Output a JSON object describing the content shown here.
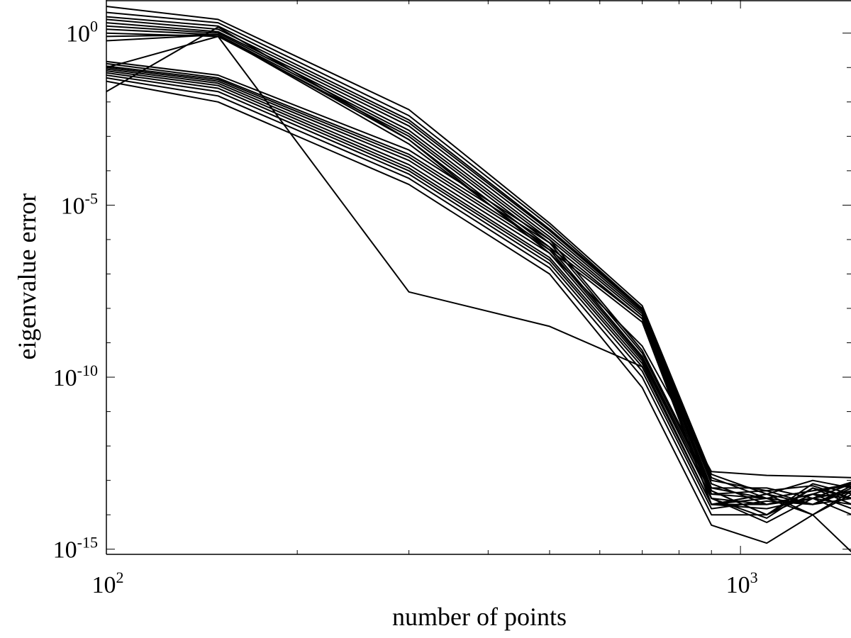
{
  "chart_data": {
    "type": "line",
    "title": "",
    "xlabel": "number of points",
    "ylabel": "eigenvalue error",
    "x_scale": "log",
    "y_scale": "log",
    "xlim": [
      100,
      1500
    ],
    "ylim": [
      5e-16,
      10.0
    ],
    "grid": false,
    "legend": "none",
    "line_color": "#000000",
    "x_ticks": [
      {
        "value": 100,
        "base": "10",
        "exp": "2"
      },
      {
        "value": 1000,
        "base": "10",
        "exp": "3"
      }
    ],
    "y_ticks": [
      {
        "value": 1,
        "base": "10",
        "exp": "0"
      },
      {
        "value": 1e-05,
        "base": "10",
        "exp": "-5"
      },
      {
        "value": 1e-10,
        "base": "10",
        "exp": "-10"
      },
      {
        "value": 1e-15,
        "base": "10",
        "exp": "-15"
      }
    ],
    "x": [
      100,
      150,
      300,
      500,
      700,
      900,
      1100,
      1300,
      1500
    ],
    "note_series": "approximately 50 overlapping eigenvalue-error curves; representative values read from the plot",
    "series": [
      {
        "values": [
          6.0,
          2.5,
          0.006,
          3e-06,
          1.2e-08,
          1.5e-13,
          4e-14,
          1e-13,
          6e-14
        ]
      },
      {
        "values": [
          4.0,
          2.0,
          0.004,
          2.5e-06,
          1e-08,
          1.2e-13,
          3e-14,
          5e-14,
          8e-14
        ]
      },
      {
        "values": [
          3.0,
          1.6,
          0.003,
          2e-06,
          1e-08,
          1e-13,
          5e-14,
          7e-14,
          3e-14
        ]
      },
      {
        "values": [
          2.5,
          1.3,
          0.0025,
          1.8e-06,
          9e-09,
          8e-14,
          2e-14,
          4e-14,
          9e-14
        ]
      },
      {
        "values": [
          2.0,
          1.1,
          0.002,
          1.5e-06,
          8e-09,
          6e-14,
          6e-14,
          3e-14,
          5e-14
        ]
      },
      {
        "values": [
          1.6,
          1.0,
          0.0015,
          1.2e-06,
          7e-09,
          5e-14,
          1e-14,
          8e-14,
          4e-14
        ]
      },
      {
        "values": [
          1.3,
          0.9,
          0.0012,
          1e-06,
          6e-09,
          4e-14,
          3e-14,
          2e-14,
          7e-14
        ]
      },
      {
        "values": [
          1.0,
          0.8,
          0.001,
          8e-07,
          5e-09,
          3e-14,
          8e-15,
          6e-14,
          2e-14
        ]
      },
      {
        "values": [
          0.8,
          0.9,
          0.0008,
          6e-07,
          5e-09,
          2e-14,
          4e-14,
          1e-14,
          5e-14
        ]
      },
      {
        "values": [
          0.6,
          0.9,
          0.0006,
          5e-07,
          4e-09,
          2e-14,
          2e-14,
          3e-14,
          1e-14
        ]
      },
      {
        "values": [
          0.15,
          0.06,
          0.0004,
          1e-06,
          6e-10,
          6e-14,
          3e-14,
          5e-14,
          7e-14
        ]
      },
      {
        "values": [
          0.13,
          0.05,
          0.0003,
          8e-07,
          5e-10,
          5e-14,
          1e-14,
          6e-14,
          3e-14
        ]
      },
      {
        "values": [
          0.11,
          0.045,
          0.00025,
          6e-07,
          4e-10,
          4e-14,
          5e-14,
          2e-14,
          6e-14
        ]
      },
      {
        "values": [
          0.1,
          0.04,
          0.0002,
          5e-07,
          3.5e-10,
          3e-14,
          2e-14,
          4e-14,
          3e-14
        ]
      },
      {
        "values": [
          0.09,
          0.035,
          0.00015,
          4e-07,
          3e-10,
          3e-14,
          6e-15,
          3e-14,
          8e-14
        ]
      },
      {
        "values": [
          0.08,
          0.03,
          0.00012,
          3e-07,
          2.5e-10,
          2e-14,
          3e-14,
          1e-14,
          4e-14
        ]
      },
      {
        "values": [
          0.07,
          0.025,
          0.0001,
          2.5e-07,
          2e-10,
          2e-14,
          1.5e-14,
          3e-14,
          2e-14
        ]
      },
      {
        "values": [
          0.06,
          0.02,
          8e-05,
          2e-07,
          1.5e-10,
          1.5e-14,
          2.5e-14,
          2e-14,
          5e-14
        ]
      },
      {
        "values": [
          0.05,
          0.015,
          6e-05,
          1.5e-07,
          1e-10,
          1e-14,
          1e-14,
          4e-14,
          1.5e-14
        ]
      },
      {
        "values": [
          0.04,
          0.01,
          4e-05,
          1e-07,
          5e-11,
          5e-15,
          1.5e-15,
          1e-14,
          8e-16
        ]
      },
      {
        "values": [
          0.1,
          0.8,
          3e-08,
          3e-09,
          2e-10,
          2e-14,
          4e-14,
          2e-14,
          3e-14
        ]
      },
      {
        "values": [
          0.02,
          1.5,
          0.0008,
          4e-07,
          8e-10,
          1.8e-13,
          1.4e-13,
          1.3e-13,
          1.2e-13
        ]
      }
    ]
  }
}
